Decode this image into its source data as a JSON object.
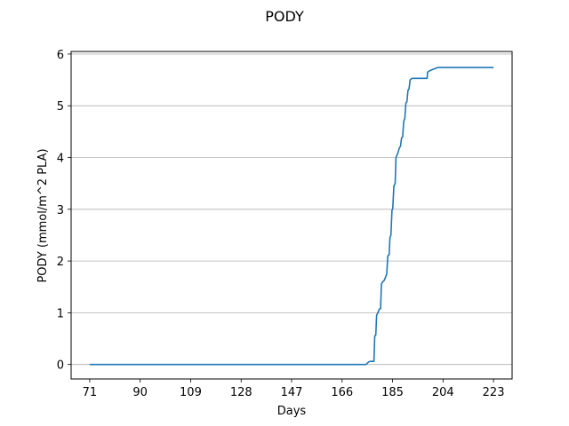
{
  "chart_data": {
    "type": "line",
    "title": "PODY",
    "xlabel": "Days",
    "ylabel": "PODY (mmol/m^2 PLA)",
    "xlim": [
      64,
      230
    ],
    "ylim": [
      -0.28,
      6.05
    ],
    "xticks": [
      71,
      90,
      109,
      128,
      147,
      166,
      185,
      204,
      223
    ],
    "yticks": [
      0,
      1,
      2,
      3,
      4,
      5,
      6
    ],
    "grid": "y-major",
    "legend": "none",
    "series": [
      {
        "color": "#1f77b4",
        "x": [
          71,
          175,
          176,
          176.5,
          177.5,
          178,
          178.3,
          178.7,
          179,
          179.5,
          180,
          180.5,
          180.8,
          181.3,
          181.8,
          182.3,
          182.8,
          183.2,
          183.7,
          184,
          184.4,
          184.8,
          185.1,
          185.5,
          186,
          186.3,
          186.7,
          187.1,
          187.5,
          188,
          188.4,
          188.8,
          189.2,
          189.6,
          190,
          190.4,
          190.8,
          191.2,
          191.6,
          192,
          192.5,
          193,
          193.5,
          194,
          194.5,
          195,
          198,
          198.2,
          199,
          200,
          201,
          202,
          223
        ],
        "y": [
          0,
          0,
          0.05,
          0.06,
          0.06,
          0.06,
          0.55,
          0.57,
          0.95,
          1.0,
          1.07,
          1.08,
          1.55,
          1.6,
          1.62,
          1.68,
          1.75,
          2.1,
          2.12,
          2.45,
          2.5,
          2.98,
          3.02,
          3.45,
          3.5,
          4.0,
          4.05,
          4.1,
          4.18,
          4.22,
          4.38,
          4.4,
          4.7,
          4.75,
          5.05,
          5.08,
          5.3,
          5.33,
          5.5,
          5.52,
          5.53,
          5.53,
          5.53,
          5.53,
          5.53,
          5.53,
          5.53,
          5.65,
          5.68,
          5.7,
          5.72,
          5.74,
          5.74
        ]
      }
    ]
  }
}
